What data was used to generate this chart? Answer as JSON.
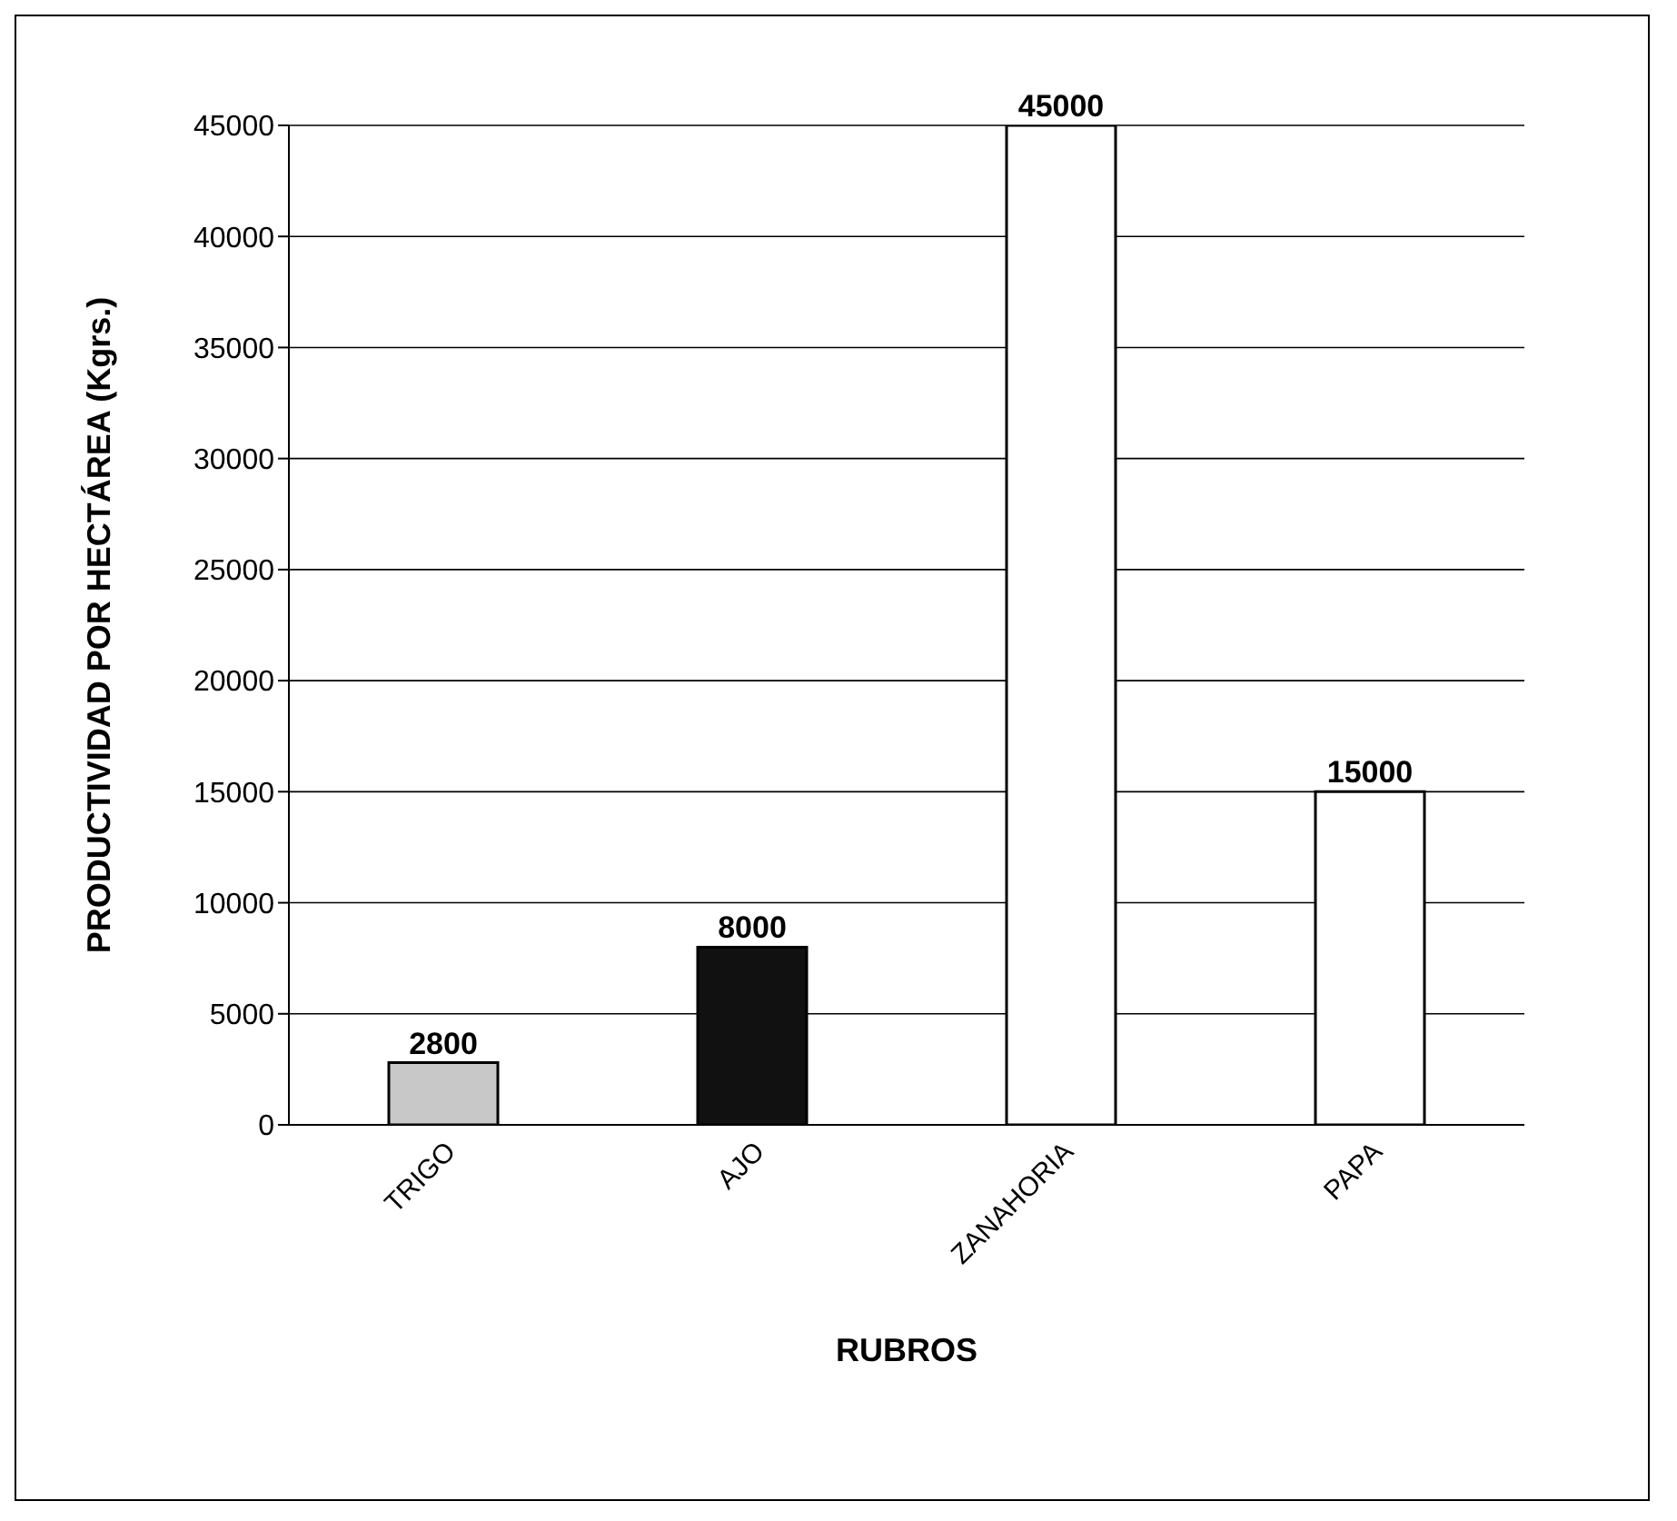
{
  "chart_data": {
    "type": "bar",
    "xlabel": "RUBROS",
    "ylabel": "PRODUCTIVIDAD POR HECTÁREA (Kgrs.)",
    "categories": [
      "TRIGO",
      "AJO",
      "ZANAHORIA",
      "PAPA"
    ],
    "values": [
      2800,
      8000,
      45000,
      15000
    ],
    "colors": [
      "#c8c8c8",
      "#111111",
      "#ffffff",
      "#ffffff"
    ],
    "ylim": [
      0,
      45000
    ],
    "yticks": [
      0,
      5000,
      10000,
      15000,
      20000,
      25000,
      30000,
      35000,
      40000,
      45000
    ],
    "grid": "y",
    "data_labels": true
  }
}
